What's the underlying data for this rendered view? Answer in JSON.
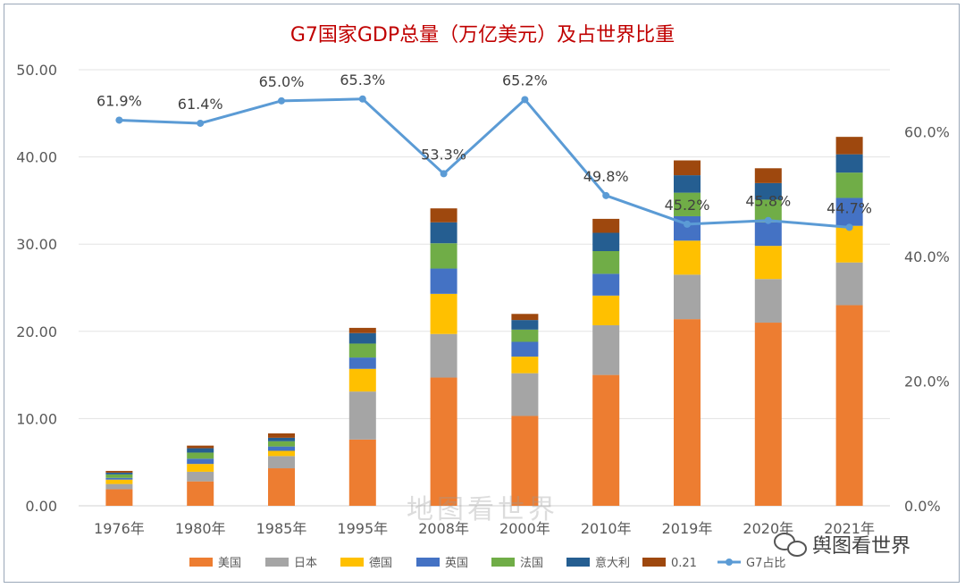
{
  "chart_data": {
    "type": "bar",
    "title": "G7国家GDP总量（万亿美元）及占世界比重",
    "categories": [
      "1976年",
      "1980年",
      "1985年",
      "1995年",
      "2008年",
      "2000年",
      "2010年",
      "2019年",
      "2020年",
      "2021年"
    ],
    "ylim_left": [
      0,
      50
    ],
    "yticks_left": [
      "0.00",
      "10.00",
      "20.00",
      "30.00",
      "40.00",
      "50.00"
    ],
    "ylim_right": [
      0,
      70
    ],
    "yticks_right": [
      "0.0%",
      "20.0%",
      "40.0%",
      "60.0%"
    ],
    "series": [
      {
        "name": "美国",
        "color": "#ED7D31",
        "values": [
          1.9,
          2.8,
          4.3,
          7.6,
          14.7,
          10.3,
          15.0,
          21.4,
          21.0,
          23.0
        ]
      },
      {
        "name": "日本",
        "color": "#A5A5A5",
        "values": [
          0.6,
          1.1,
          1.4,
          5.5,
          5.0,
          4.9,
          5.7,
          5.1,
          5.0,
          4.9
        ]
      },
      {
        "name": "德国",
        "color": "#FFC000",
        "values": [
          0.5,
          0.9,
          0.6,
          2.6,
          4.6,
          1.9,
          3.4,
          3.9,
          3.8,
          4.2
        ]
      },
      {
        "name": "英国",
        "color": "#4472C4",
        "values": [
          0.2,
          0.6,
          0.5,
          1.3,
          2.9,
          1.7,
          2.5,
          2.8,
          2.7,
          3.2
        ]
      },
      {
        "name": "法国",
        "color": "#70AD47",
        "values": [
          0.4,
          0.7,
          0.6,
          1.6,
          2.9,
          1.4,
          2.6,
          2.7,
          2.6,
          2.9
        ]
      },
      {
        "name": "意大利",
        "color": "#255E91",
        "values": [
          0.2,
          0.5,
          0.4,
          1.2,
          2.4,
          1.1,
          2.1,
          2.0,
          1.9,
          2.1
        ]
      },
      {
        "name": "0.21",
        "color": "#9E480E",
        "values": [
          0.2,
          0.3,
          0.5,
          0.6,
          1.6,
          0.7,
          1.6,
          1.7,
          1.7,
          2.0
        ]
      }
    ],
    "line_series": {
      "name": "G7占比",
      "color": "#5B9BD5",
      "values": [
        61.9,
        61.4,
        65.0,
        65.3,
        53.3,
        65.2,
        49.8,
        45.2,
        45.8,
        44.7
      ],
      "labels": [
        "61.9%",
        "61.4%",
        "65.0%",
        "65.3%",
        "53.3%",
        "65.2%",
        "49.8%",
        "45.2%",
        "45.8%",
        "44.7%"
      ]
    },
    "legend_position": "bottom"
  },
  "watermark": "地图看世界",
  "logo_text": "舆图看世界"
}
